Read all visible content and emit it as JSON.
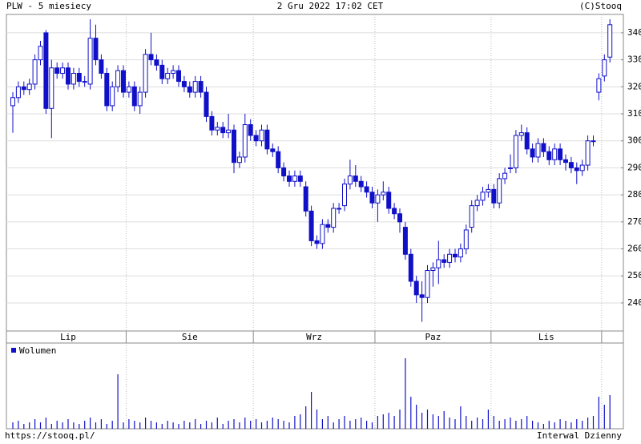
{
  "chart_data": {
    "type": "candlestick",
    "title": "PLW - 5 miesiecy",
    "subtitle": "2 Gru 2022 17:02 CET",
    "source": "(C)Stooq",
    "volume_label": "Wolumen",
    "footer_left": "https://stooq.pl/",
    "footer_right": "Interwal Dzienny",
    "color": "#1010c8",
    "grid": true,
    "ylim": [
      229.6,
      346.8
    ],
    "yticks": [
      240,
      250,
      260,
      270,
      280,
      290,
      300,
      310,
      320,
      330,
      340
    ],
    "categories": [
      "Lip",
      "Lip",
      "Lip",
      "Lip",
      "Lip",
      "Lip",
      "Lip",
      "Lip",
      "Lip",
      "Lip",
      "Lip",
      "Lip",
      "Lip",
      "Lip",
      "Lip",
      "Lip",
      "Lip",
      "Lip",
      "Lip",
      "Lip",
      "Lip",
      "Sie",
      "Sie",
      "Sie",
      "Sie",
      "Sie",
      "Sie",
      "Sie",
      "Sie",
      "Sie",
      "Sie",
      "Sie",
      "Sie",
      "Sie",
      "Sie",
      "Sie",
      "Sie",
      "Sie",
      "Sie",
      "Sie",
      "Sie",
      "Sie",
      "Sie",
      "Sie",
      "Wrz",
      "Wrz",
      "Wrz",
      "Wrz",
      "Wrz",
      "Wrz",
      "Wrz",
      "Wrz",
      "Wrz",
      "Wrz",
      "Wrz",
      "Wrz",
      "Wrz",
      "Wrz",
      "Wrz",
      "Wrz",
      "Wrz",
      "Wrz",
      "Wrz",
      "Wrz",
      "Wrz",
      "Wrz",
      "Paz",
      "Paz",
      "Paz",
      "Paz",
      "Paz",
      "Paz",
      "Paz",
      "Paz",
      "Paz",
      "Paz",
      "Paz",
      "Paz",
      "Paz",
      "Paz",
      "Paz",
      "Paz",
      "Paz",
      "Paz",
      "Paz",
      "Paz",
      "Paz",
      "Lis",
      "Lis",
      "Lis",
      "Lis",
      "Lis",
      "Lis",
      "Lis",
      "Lis",
      "Lis",
      "Lis",
      "Lis",
      "Lis",
      "Lis",
      "Lis",
      "Lis",
      "Lis",
      "Lis",
      "Lis",
      "Lis",
      "Lis",
      null,
      null
    ],
    "open": [
      313,
      316,
      320,
      319,
      321,
      330,
      340,
      312,
      327,
      325,
      327,
      321,
      325,
      322,
      321,
      338,
      330,
      325,
      313,
      320,
      326,
      318,
      320,
      313,
      318,
      332,
      330,
      328,
      323,
      325,
      326,
      322,
      320,
      318,
      322,
      318,
      309,
      304,
      305,
      303,
      304,
      292,
      294,
      306,
      302,
      300,
      304,
      297,
      296,
      290,
      287,
      285,
      287,
      283,
      274,
      263,
      262,
      269,
      268,
      275,
      276,
      284,
      287,
      285,
      283,
      281,
      277,
      280,
      281,
      275,
      273,
      268,
      258,
      248,
      243,
      242,
      252,
      253,
      256,
      255,
      258,
      257,
      260,
      268,
      276,
      278,
      281,
      282,
      277,
      286,
      290,
      290,
      302,
      303,
      297,
      294,
      299,
      296,
      293,
      297,
      293,
      292,
      290,
      289,
      291,
      300,
      318,
      324,
      331
    ],
    "high": [
      318,
      322,
      322,
      323,
      332,
      337,
      341,
      330,
      329,
      329,
      329,
      327,
      327,
      324,
      345,
      343,
      332,
      327,
      322,
      328,
      328,
      322,
      322,
      320,
      334,
      340,
      332,
      330,
      327,
      328,
      328,
      324,
      322,
      324,
      324,
      320,
      311,
      307,
      307,
      310,
      306,
      296,
      310,
      308,
      304,
      306,
      306,
      299,
      298,
      292,
      289,
      289,
      289,
      285,
      276,
      265,
      271,
      271,
      277,
      277,
      286,
      293,
      291,
      287,
      285,
      283,
      282,
      285,
      283,
      277,
      275,
      270,
      260,
      250,
      248,
      254,
      255,
      263,
      258,
      260,
      260,
      262,
      269,
      278,
      280,
      283,
      284,
      284,
      288,
      290,
      295,
      304,
      306,
      305,
      299,
      301,
      301,
      298,
      299,
      299,
      295,
      294,
      292,
      293,
      302,
      302,
      325,
      332,
      345
    ],
    "low": [
      303,
      314,
      317,
      317,
      319,
      328,
      310,
      301,
      323,
      323,
      319,
      319,
      320,
      320,
      319,
      328,
      323,
      311,
      311,
      318,
      316,
      316,
      311,
      310,
      316,
      328,
      326,
      321,
      321,
      323,
      320,
      318,
      316,
      316,
      316,
      307,
      302,
      302,
      301,
      301,
      288,
      290,
      292,
      300,
      298,
      298,
      295,
      294,
      288,
      285,
      283,
      283,
      283,
      272,
      261,
      260,
      260,
      266,
      266,
      273,
      274,
      282,
      283,
      281,
      279,
      275,
      270,
      278,
      273,
      271,
      266,
      256,
      246,
      240,
      233,
      240,
      246,
      247,
      253,
      253,
      255,
      255,
      258,
      266,
      274,
      276,
      279,
      275,
      275,
      284,
      288,
      288,
      300,
      295,
      292,
      292,
      294,
      291,
      291,
      291,
      289,
      288,
      284,
      287,
      289,
      298,
      315,
      322,
      329
    ],
    "close": [
      316,
      320,
      319,
      321,
      330,
      335,
      312,
      327,
      325,
      327,
      321,
      325,
      322,
      322,
      338,
      330,
      325,
      313,
      320,
      326,
      318,
      320,
      313,
      318,
      332,
      330,
      328,
      323,
      325,
      326,
      322,
      320,
      318,
      322,
      318,
      309,
      304,
      305,
      303,
      304,
      292,
      294,
      306,
      302,
      300,
      304,
      297,
      296,
      290,
      287,
      285,
      287,
      285,
      274,
      263,
      262,
      269,
      268,
      275,
      275,
      284,
      287,
      285,
      283,
      281,
      277,
      280,
      281,
      275,
      273,
      270,
      258,
      248,
      243,
      242,
      252,
      253,
      256,
      255,
      258,
      257,
      260,
      267,
      276,
      278,
      281,
      282,
      277,
      286,
      288,
      290,
      302,
      303,
      297,
      294,
      299,
      296,
      293,
      297,
      293,
      292,
      290,
      289,
      291,
      300,
      300,
      323,
      330,
      343
    ],
    "volume": [
      8,
      10,
      6,
      8,
      12,
      8,
      14,
      6,
      10,
      8,
      12,
      8,
      6,
      10,
      14,
      8,
      12,
      6,
      10,
      68,
      8,
      12,
      10,
      8,
      14,
      10,
      8,
      6,
      10,
      8,
      6,
      10,
      8,
      12,
      6,
      10,
      8,
      14,
      6,
      10,
      12,
      8,
      14,
      10,
      12,
      8,
      10,
      14,
      12,
      10,
      8,
      16,
      18,
      28,
      46,
      24,
      12,
      16,
      8,
      12,
      16,
      10,
      12,
      14,
      10,
      8,
      16,
      18,
      20,
      16,
      24,
      88,
      40,
      30,
      20,
      24,
      18,
      16,
      22,
      14,
      12,
      28,
      16,
      10,
      14,
      12,
      24,
      16,
      10,
      12,
      14,
      10,
      12,
      16,
      10,
      8,
      6,
      10,
      8,
      12,
      10,
      8,
      12,
      10,
      14,
      16,
      40,
      30,
      42
    ]
  }
}
